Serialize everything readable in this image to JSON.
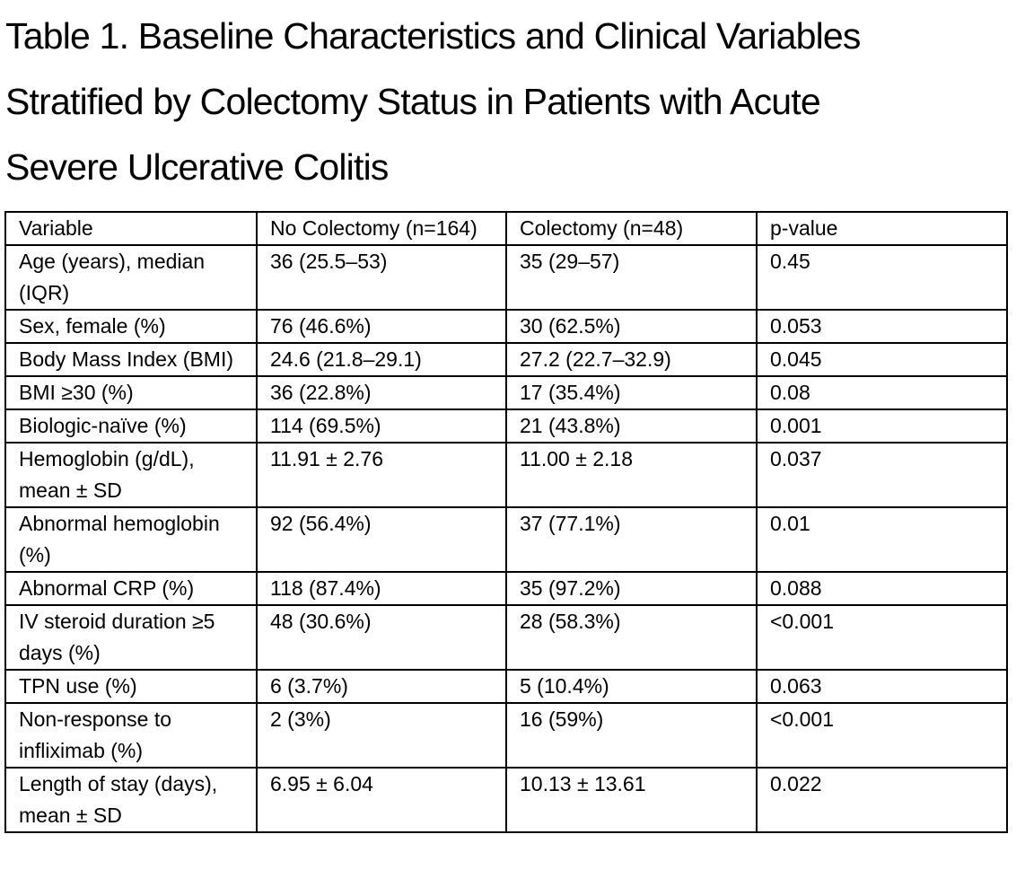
{
  "title": {
    "lines": [
      "Table 1. Baseline Characteristics and Clinical Variables",
      "Stratified by Colectomy Status in Patients with Acute",
      "Severe Ulcerative Colitis"
    ]
  },
  "table": {
    "headers": [
      "Variable",
      "No Colectomy (n=164)",
      "Colectomy (n=48)",
      "p-value"
    ],
    "rows": [
      [
        "Age (years), median (IQR)",
        "36 (25.5–53)",
        "35 (29–57)",
        "0.45"
      ],
      [
        "Sex, female (%)",
        "76 (46.6%)",
        "30 (62.5%)",
        "0.053"
      ],
      [
        "Body Mass Index (BMI)",
        "24.6 (21.8–29.1)",
        "27.2 (22.7–32.9)",
        "0.045"
      ],
      [
        "BMI ≥30 (%)",
        "36 (22.8%)",
        "17 (35.4%)",
        "0.08"
      ],
      [
        "Biologic-naïve (%)",
        "114 (69.5%)",
        "21 (43.8%)",
        "0.001"
      ],
      [
        "Hemoglobin (g/dL), mean ± SD",
        "11.91 ± 2.76",
        "11.00 ± 2.18",
        "0.037"
      ],
      [
        "Abnormal hemoglobin (%)",
        "92 (56.4%)",
        "37 (77.1%)",
        "0.01"
      ],
      [
        "Abnormal CRP (%)",
        "118 (87.4%)",
        "35 (97.2%)",
        "0.088"
      ],
      [
        "IV steroid duration ≥5 days (%)",
        "48 (30.6%)",
        "28 (58.3%)",
        "<0.001"
      ],
      [
        "TPN use (%)",
        "6 (3.7%)",
        "5 (10.4%)",
        "0.063"
      ],
      [
        "Non-response to infliximab (%)",
        "2 (3%)",
        "16 (59%)",
        "<0.001"
      ],
      [
        "Length of stay (days), mean ± SD",
        "6.95 ± 6.04",
        "10.13 ± 13.61",
        "0.022"
      ]
    ]
  }
}
